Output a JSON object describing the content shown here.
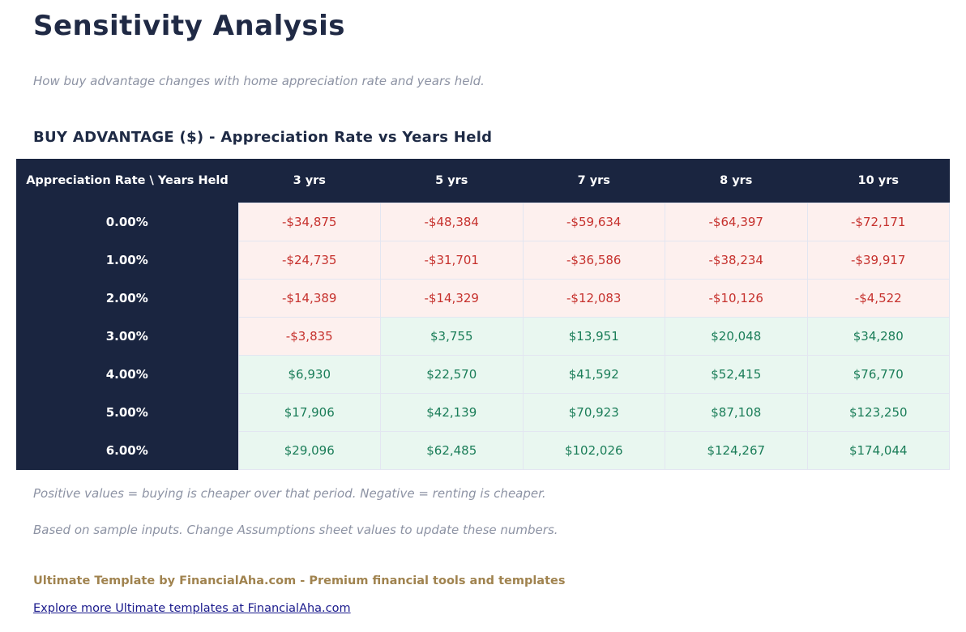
{
  "page": {
    "title": "Sensitivity Analysis",
    "subtitle": "How buy advantage changes with home appreciation rate and years held.",
    "section_heading": "BUY ADVANTAGE ($) - Appreciation Rate vs Years Held",
    "note_interpretation": "Positive values = buying is cheaper over that period. Negative = renting is cheaper.",
    "note_inputs": "Based on sample inputs. Change Assumptions sheet values to update these numbers.",
    "brand_line": "Ultimate Template by FinancialAha.com - Premium financial tools and templates",
    "explore_link_text": "Explore more Ultimate templates at FinancialAha.com"
  },
  "table": {
    "corner_header": "Appreciation Rate \\ Years Held",
    "column_headers": [
      "3 yrs",
      "5 yrs",
      "7 yrs",
      "8 yrs",
      "10 yrs"
    ],
    "rows": [
      {
        "label": "0.00%",
        "cells": [
          "-$34,875",
          "-$48,384",
          "-$59,634",
          "-$64,397",
          "-$72,171"
        ]
      },
      {
        "label": "1.00%",
        "cells": [
          "-$24,735",
          "-$31,701",
          "-$36,586",
          "-$38,234",
          "-$39,917"
        ]
      },
      {
        "label": "2.00%",
        "cells": [
          "-$14,389",
          "-$14,329",
          "-$12,083",
          "-$10,126",
          "-$4,522"
        ]
      },
      {
        "label": "3.00%",
        "cells": [
          "-$3,835",
          "$3,755",
          "$13,951",
          "$20,048",
          "$34,280"
        ]
      },
      {
        "label": "4.00%",
        "cells": [
          "$6,930",
          "$22,570",
          "$41,592",
          "$52,415",
          "$76,770"
        ]
      },
      {
        "label": "5.00%",
        "cells": [
          "$17,906",
          "$42,139",
          "$70,923",
          "$87,108",
          "$123,250"
        ]
      },
      {
        "label": "6.00%",
        "cells": [
          "$29,096",
          "$62,485",
          "$102,026",
          "$124,267",
          "$174,044"
        ]
      }
    ]
  },
  "colors": {
    "header_navy": "#1a2540",
    "negative_text": "#c6312d",
    "negative_bg": "#fdf0ee",
    "positive_text": "#1a7d58",
    "positive_bg": "#e9f7f0",
    "brand_gold": "#a0834f",
    "link_blue": "#1a1a8c"
  }
}
